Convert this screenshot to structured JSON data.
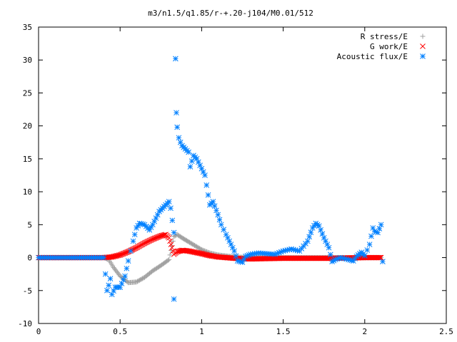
{
  "chart_data": {
    "type": "scatter",
    "title": "m3/n1.5/q1.85/r-+.20-j104/M0.01/512",
    "xlabel": "",
    "ylabel": "",
    "xlim": [
      0,
      2.5
    ],
    "ylim": [
      -10,
      35
    ],
    "x_ticks": [
      0,
      0.5,
      1,
      1.5,
      2,
      2.5
    ],
    "x_tick_labels": [
      "0",
      "0.5",
      "1",
      "1.5",
      "2",
      "2.5"
    ],
    "y_ticks": [
      -10,
      -5,
      0,
      5,
      10,
      15,
      20,
      25,
      30,
      35
    ],
    "y_tick_labels": [
      "-10",
      "-5",
      "0",
      "5",
      "10",
      "15",
      "20",
      "25",
      "30",
      "35"
    ],
    "grid": false,
    "legend_position": "top-right",
    "series": [
      {
        "name": "R stress/E",
        "marker": "plus",
        "color": "#a0a0a0",
        "x": [
          0.0,
          0.1,
          0.2,
          0.3,
          0.4,
          0.43,
          0.46,
          0.5,
          0.55,
          0.6,
          0.65,
          0.7,
          0.75,
          0.8,
          0.83,
          0.85,
          0.88,
          0.92,
          1.0,
          1.05,
          1.1,
          1.2,
          1.3,
          1.5,
          1.8,
          2.0,
          2.1
        ],
        "y": [
          0,
          0,
          0,
          0,
          0,
          -0.3,
          -1.5,
          -2.8,
          -3.8,
          -3.7,
          -3.0,
          -2.0,
          -1.2,
          -0.3,
          3.2,
          3.5,
          3.0,
          2.4,
          1.2,
          0.7,
          0.4,
          0.1,
          0,
          0,
          0,
          0,
          0
        ]
      },
      {
        "name": "G work/E",
        "marker": "cross",
        "color": "#ff0000",
        "x": [
          0.0,
          0.1,
          0.2,
          0.3,
          0.4,
          0.45,
          0.5,
          0.55,
          0.6,
          0.65,
          0.7,
          0.75,
          0.78,
          0.8,
          0.83,
          0.85,
          0.88,
          0.92,
          1.0,
          1.05,
          1.1,
          1.2,
          1.3,
          1.5,
          1.8,
          2.0,
          2.1
        ],
        "y": [
          0,
          0,
          0,
          0,
          0,
          0.1,
          0.4,
          0.9,
          1.5,
          2.2,
          2.8,
          3.3,
          3.5,
          3.0,
          0.5,
          0.9,
          1.1,
          1.0,
          0.6,
          0.3,
          0.1,
          -0.1,
          -0.2,
          -0.1,
          -0.1,
          0.0,
          0.0
        ]
      },
      {
        "name": "Acoustic flux/E",
        "marker": "star",
        "color": "#0080ff",
        "x": [
          0.0,
          0.1,
          0.2,
          0.3,
          0.4,
          0.42,
          0.43,
          0.44,
          0.45,
          0.47,
          0.5,
          0.53,
          0.55,
          0.58,
          0.6,
          0.62,
          0.65,
          0.68,
          0.7,
          0.72,
          0.74,
          0.76,
          0.78,
          0.8,
          0.81,
          0.83,
          0.84,
          0.845,
          0.85,
          0.86,
          0.87,
          0.88,
          0.9,
          0.92,
          0.93,
          0.95,
          0.97,
          1.0,
          1.02,
          1.03,
          1.05,
          1.07,
          1.1,
          1.12,
          1.15,
          1.18,
          1.2,
          1.22,
          1.25,
          1.27,
          1.3,
          1.35,
          1.4,
          1.45,
          1.5,
          1.55,
          1.6,
          1.65,
          1.68,
          1.7,
          1.72,
          1.75,
          1.78,
          1.8,
          1.82,
          1.85,
          1.9,
          1.93,
          1.95,
          1.98,
          2.0,
          2.03,
          2.05,
          2.06,
          2.08,
          2.1,
          2.11
        ],
        "y": [
          0,
          0,
          0,
          0,
          0,
          -5.0,
          -4.2,
          -3.2,
          -5.6,
          -4.5,
          -4.5,
          -2.8,
          -0.5,
          2.5,
          4.5,
          5.2,
          5.0,
          4.2,
          5.0,
          6.0,
          7.0,
          7.5,
          8.0,
          8.5,
          7.5,
          3.8,
          30.2,
          22.0,
          19.8,
          18.2,
          17.5,
          17.0,
          16.5,
          16.0,
          13.8,
          15.5,
          15.0,
          13.5,
          12.5,
          11.0,
          8.0,
          8.5,
          6.5,
          5.0,
          3.5,
          2.0,
          1.0,
          -0.5,
          -0.7,
          0.2,
          0.5,
          0.7,
          0.6,
          0.5,
          1.0,
          1.3,
          1.0,
          2.5,
          4.5,
          5.2,
          4.8,
          3.0,
          1.5,
          -0.6,
          -0.3,
          0.0,
          -0.3,
          -0.5,
          0.2,
          0.8,
          0.3,
          2.0,
          4.5,
          4.0,
          3.8,
          5.0,
          -0.6
        ]
      }
    ],
    "extra_points": [
      {
        "series": "Acoustic flux/E",
        "x": 0.83,
        "y": -6.3
      }
    ]
  }
}
